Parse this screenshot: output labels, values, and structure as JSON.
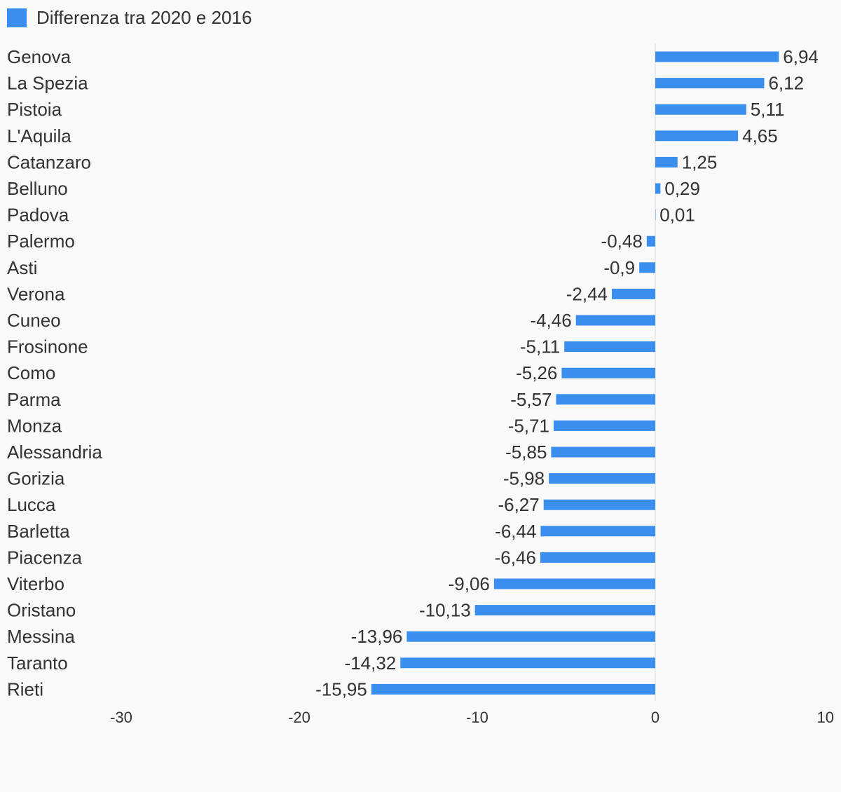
{
  "legend": {
    "label": "Differenza tra 2020 e 2016",
    "color": "#3a8eed"
  },
  "chart_data": {
    "type": "bar",
    "orientation": "horizontal",
    "categories": [
      "Genova",
      "La Spezia",
      "Pistoia",
      "L'Aquila",
      "Catanzaro",
      "Belluno",
      "Padova",
      "Palermo",
      "Asti",
      "Verona",
      "Cuneo",
      "Frosinone",
      "Como",
      "Parma",
      "Monza",
      "Alessandria",
      "Gorizia",
      "Lucca",
      "Barletta",
      "Piacenza",
      "Viterbo",
      "Oristano",
      "Messina",
      "Taranto",
      "Rieti"
    ],
    "series": [
      {
        "name": "Differenza tra 2020 e 2016",
        "values": [
          6.94,
          6.12,
          5.11,
          4.65,
          1.25,
          0.29,
          0.01,
          -0.48,
          -0.9,
          -2.44,
          -4.46,
          -5.11,
          -5.26,
          -5.57,
          -5.71,
          -5.85,
          -5.98,
          -6.27,
          -6.44,
          -6.46,
          -9.06,
          -10.13,
          -13.96,
          -14.32,
          -15.95
        ],
        "labels": [
          "6,94",
          "6,12",
          "5,11",
          "4,65",
          "1,25",
          "0,29",
          "0,01",
          "-0,48",
          "-0,9",
          "-2,44",
          "-4,46",
          "-5,11",
          "-5,26",
          "-5,57",
          "-5,71",
          "-5,85",
          "-5,98",
          "-6,27",
          "-6,44",
          "-6,46",
          "-9,06",
          "-10,13",
          "-13,96",
          "-14,32",
          "-15,95"
        ]
      }
    ],
    "xlim": [
      -30,
      10
    ],
    "xticks": [
      -30,
      -20,
      -10,
      0,
      10
    ],
    "xtick_labels": [
      "-30",
      "-20",
      "-10",
      "0",
      "10"
    ],
    "grid": false,
    "legend_position": "top-left"
  }
}
